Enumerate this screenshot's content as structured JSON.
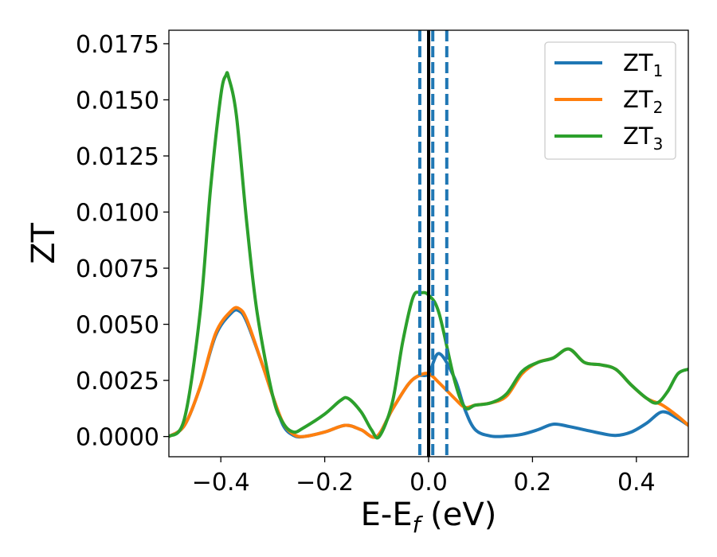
{
  "chart_data": {
    "type": "line",
    "title": "",
    "xlabel": "E-E",
    "xlabel_sub": "f",
    "xlabel_suffix": " (eV)",
    "ylabel": "ZT",
    "xlim": [
      -0.5,
      0.5
    ],
    "ylim": [
      -0.0009,
      0.0181
    ],
    "xticks": [
      -0.4,
      -0.2,
      0.0,
      0.2,
      0.4
    ],
    "xtick_labels": [
      "−0.4",
      "−0.2",
      "0.0",
      "0.2",
      "0.4"
    ],
    "yticks": [
      0.0,
      0.0025,
      0.005,
      0.0075,
      0.01,
      0.0125,
      0.015,
      0.0175
    ],
    "ytick_labels": [
      "0.0000",
      "0.0025",
      "0.0050",
      "0.0075",
      "0.0100",
      "0.0125",
      "0.0150",
      "0.0175"
    ],
    "grid": false,
    "legend_position": "top-right",
    "reference_lines": {
      "solid": {
        "x": 0.0,
        "color": "#000000"
      },
      "dashed": {
        "x": [
          -0.017,
          0.008,
          0.035
        ],
        "color": "#1f77b4"
      }
    },
    "series": [
      {
        "name": "ZT",
        "sub": "1",
        "color": "#1f77b4",
        "x": [
          -0.5,
          -0.47,
          -0.44,
          -0.41,
          -0.38,
          -0.365,
          -0.35,
          -0.32,
          -0.3,
          -0.28,
          -0.26,
          -0.24,
          -0.2,
          -0.16,
          -0.13,
          -0.1,
          -0.07,
          -0.04,
          -0.02,
          0.0,
          0.02,
          0.05,
          0.07,
          0.09,
          0.12,
          0.15,
          0.18,
          0.21,
          0.24,
          0.27,
          0.3,
          0.33,
          0.36,
          0.39,
          0.42,
          0.45,
          0.48,
          0.5
        ],
        "y": [
          0.0,
          0.0005,
          0.0022,
          0.0045,
          0.0055,
          0.0056,
          0.0051,
          0.0032,
          0.0018,
          0.0005,
          5e-05,
          0.0,
          0.0002,
          0.0005,
          0.0003,
          0.0,
          0.0012,
          0.0023,
          0.0027,
          0.0028,
          0.0037,
          0.0026,
          0.0012,
          0.0003,
          2e-05,
          2e-05,
          0.0001,
          0.0003,
          0.00055,
          0.00045,
          0.0003,
          0.00015,
          5e-05,
          0.0002,
          0.0006,
          0.0011,
          0.0008,
          0.0005
        ]
      },
      {
        "name": "ZT",
        "sub": "2",
        "color": "#ff7f0e",
        "x": [
          -0.5,
          -0.47,
          -0.44,
          -0.41,
          -0.38,
          -0.365,
          -0.35,
          -0.32,
          -0.3,
          -0.28,
          -0.26,
          -0.24,
          -0.2,
          -0.16,
          -0.13,
          -0.1,
          -0.07,
          -0.04,
          -0.02,
          0.0,
          0.02,
          0.05,
          0.07,
          0.09,
          0.12,
          0.15,
          0.18,
          0.21,
          0.24,
          0.27,
          0.3,
          0.33,
          0.36,
          0.39,
          0.42,
          0.45,
          0.48,
          0.5
        ],
        "y": [
          0.0,
          0.0005,
          0.0022,
          0.0046,
          0.0056,
          0.0057,
          0.0052,
          0.0032,
          0.0018,
          0.0006,
          0.0001,
          0.0,
          0.0002,
          0.0005,
          0.0003,
          0.0,
          0.0012,
          0.0023,
          0.0027,
          0.0028,
          0.0024,
          0.0017,
          0.0013,
          0.0014,
          0.0015,
          0.0018,
          0.0028,
          0.0033,
          0.0035,
          0.0039,
          0.0033,
          0.0032,
          0.003,
          0.0023,
          0.0017,
          0.0014,
          0.0009,
          0.0005
        ]
      },
      {
        "name": "ZT",
        "sub": "3",
        "color": "#2ca02c",
        "x": [
          -0.5,
          -0.47,
          -0.44,
          -0.42,
          -0.4,
          -0.39,
          -0.385,
          -0.37,
          -0.35,
          -0.33,
          -0.3,
          -0.28,
          -0.26,
          -0.24,
          -0.2,
          -0.17,
          -0.155,
          -0.13,
          -0.11,
          -0.095,
          -0.07,
          -0.05,
          -0.03,
          -0.015,
          0.0,
          0.02,
          0.05,
          0.07,
          0.09,
          0.12,
          0.15,
          0.18,
          0.21,
          0.24,
          0.27,
          0.3,
          0.33,
          0.36,
          0.39,
          0.42,
          0.44,
          0.46,
          0.48,
          0.5
        ],
        "y": [
          0.0,
          0.0008,
          0.0055,
          0.011,
          0.0152,
          0.0161,
          0.016,
          0.0143,
          0.0095,
          0.0055,
          0.0018,
          0.0006,
          0.0002,
          0.0004,
          0.001,
          0.0016,
          0.0017,
          0.0011,
          0.0003,
          0.0,
          0.0015,
          0.0042,
          0.0062,
          0.0064,
          0.0063,
          0.0055,
          0.0025,
          0.0013,
          0.0014,
          0.0015,
          0.0019,
          0.0029,
          0.0033,
          0.0035,
          0.0039,
          0.0033,
          0.0032,
          0.003,
          0.0023,
          0.0017,
          0.0015,
          0.002,
          0.0028,
          0.003
        ]
      }
    ]
  }
}
